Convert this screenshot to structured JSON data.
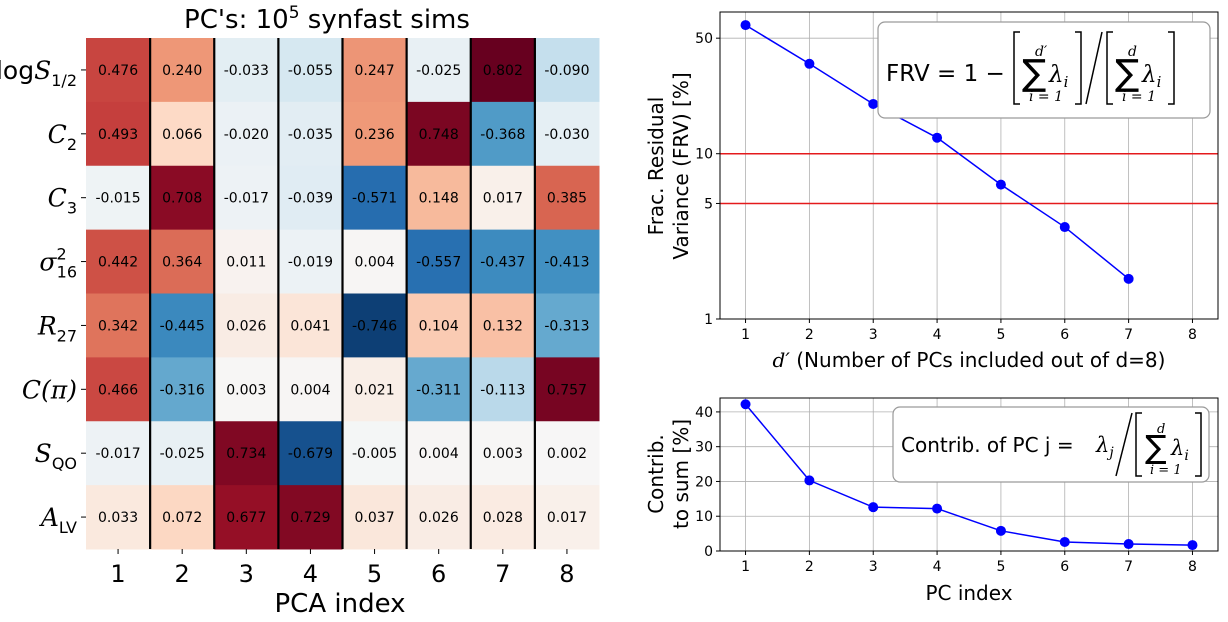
{
  "chart_data": [
    {
      "type": "heatmap",
      "title": "PC's: 10",
      "title_sup": "5",
      "title_rest": " synfast sims",
      "xlabel": "PCA index",
      "x_ticks": [
        "1",
        "2",
        "3",
        "4",
        "5",
        "6",
        "7",
        "8"
      ],
      "rows": [
        {
          "name": "log",
          "sym": "S",
          "sub": "1/2",
          "values": [
            0.476,
            0.24,
            -0.033,
            -0.055,
            0.247,
            -0.025,
            0.802,
            -0.09
          ],
          "labels": [
            "0.476",
            "0.240",
            "-0.033",
            "-0.055",
            "0.247",
            "-0.025",
            "0.802",
            "-0.090"
          ]
        },
        {
          "name": "",
          "sym": "C",
          "sub": "2",
          "values": [
            0.493,
            0.066,
            -0.02,
            -0.035,
            0.236,
            0.748,
            -0.368,
            -0.03
          ],
          "labels": [
            "0.493",
            "0.066",
            "-0.020",
            "-0.035",
            "0.236",
            "0.748",
            "-0.368",
            "-0.030"
          ]
        },
        {
          "name": "",
          "sym": "C",
          "sub": "3",
          "values": [
            -0.015,
            0.708,
            -0.017,
            -0.039,
            -0.571,
            0.148,
            0.017,
            0.385
          ],
          "labels": [
            "-0.015",
            "0.708",
            "-0.017",
            "-0.039",
            "-0.571",
            "0.148",
            "0.017",
            "0.385"
          ]
        },
        {
          "name": "",
          "sym": "σ",
          "sup": "2",
          "sub": "16",
          "values": [
            0.442,
            0.364,
            0.011,
            -0.019,
            0.004,
            -0.557,
            -0.437,
            -0.413
          ],
          "labels": [
            "0.442",
            "0.364",
            "0.011",
            "-0.019",
            "0.004",
            "-0.557",
            "-0.437",
            "-0.413"
          ]
        },
        {
          "name": "",
          "sym": "R",
          "sub": "27",
          "values": [
            0.342,
            -0.445,
            0.026,
            0.041,
            -0.746,
            0.104,
            0.132,
            -0.313
          ],
          "labels": [
            "0.342",
            "-0.445",
            "0.026",
            "0.041",
            "-0.746",
            "0.104",
            "0.132",
            "-0.313"
          ]
        },
        {
          "name": "",
          "sym": "C(π)",
          "sub": "",
          "values": [
            0.466,
            -0.316,
            0.003,
            0.004,
            0.021,
            -0.311,
            -0.113,
            0.757
          ],
          "labels": [
            "0.466",
            "-0.316",
            "0.003",
            "0.004",
            "0.021",
            "-0.311",
            "-0.113",
            "0.757"
          ]
        },
        {
          "name": "",
          "sym": "S",
          "sub": "QO",
          "values": [
            -0.017,
            -0.025,
            0.734,
            -0.679,
            -0.005,
            0.004,
            0.003,
            0.002
          ],
          "labels": [
            "-0.017",
            "-0.025",
            "0.734",
            "-0.679",
            "-0.005",
            "0.004",
            "0.003",
            "0.002"
          ]
        },
        {
          "name": "",
          "sym": "A",
          "sub": "LV",
          "values": [
            0.033,
            0.072,
            0.677,
            0.729,
            0.037,
            0.026,
            0.028,
            0.017
          ],
          "labels": [
            "0.033",
            "0.072",
            "0.677",
            "0.729",
            "0.037",
            "0.026",
            "0.028",
            "0.017"
          ]
        }
      ],
      "colormap": "RdBu_r",
      "vlim": [
        -0.8,
        0.8
      ]
    },
    {
      "type": "line",
      "x": [
        1,
        2,
        3,
        4,
        5,
        6,
        7
      ],
      "y": [
        60,
        35,
        20,
        12.5,
        6.5,
        3.6,
        1.75
      ],
      "xlim": [
        0.6,
        8.4
      ],
      "ylim": [
        1,
        72
      ],
      "yscale": "log",
      "x_ticks": [
        "1",
        "2",
        "3",
        "4",
        "5",
        "6",
        "7",
        "8"
      ],
      "y_ticks": [
        {
          "v": 1,
          "label": "1"
        },
        {
          "v": 5,
          "label": "5"
        },
        {
          "v": 10,
          "label": "10"
        },
        {
          "v": 50,
          "label": "50"
        }
      ],
      "hlines": [
        10,
        5
      ],
      "hline_color": "#e41a1c",
      "line_color": "#0000ff",
      "grid": true,
      "ylabel_line1": "Frac. Residual",
      "ylabel_line2": "Variance (FRV) [%]",
      "xlabel_sym": "d′",
      "xlabel_rest": " (Number of PCs included out of d=8)",
      "annotation": {
        "prefix": "FRV = 1 −",
        "sum_top_a": "d′",
        "sum_top_b": "d",
        "sum_bottom": "i = 1",
        "term": "λ",
        "term_sub": "i"
      }
    },
    {
      "type": "line",
      "x": [
        1,
        2,
        3,
        4,
        5,
        6,
        7,
        8
      ],
      "y": [
        42.2,
        20.3,
        12.6,
        12.2,
        5.8,
        2.6,
        2.0,
        1.7
      ],
      "xlim": [
        0.6,
        8.4
      ],
      "ylim": [
        0,
        44
      ],
      "x_ticks": [
        "1",
        "2",
        "3",
        "4",
        "5",
        "6",
        "7",
        "8"
      ],
      "y_ticks": [
        {
          "v": 0,
          "label": "0"
        },
        {
          "v": 10,
          "label": "10"
        },
        {
          "v": 20,
          "label": "20"
        },
        {
          "v": 30,
          "label": "30"
        },
        {
          "v": 40,
          "label": "40"
        }
      ],
      "line_color": "#0000ff",
      "grid": true,
      "ylabel_line1": "Contrib.",
      "ylabel_line2": "to sum [%]",
      "xlabel": "PC index",
      "annotation": {
        "prefix": "Contrib. of PC j =",
        "num": "λ",
        "num_sub": "j",
        "sum_top": "d",
        "sum_bottom": "i = 1",
        "term": "λ",
        "term_sub": "i"
      }
    }
  ]
}
